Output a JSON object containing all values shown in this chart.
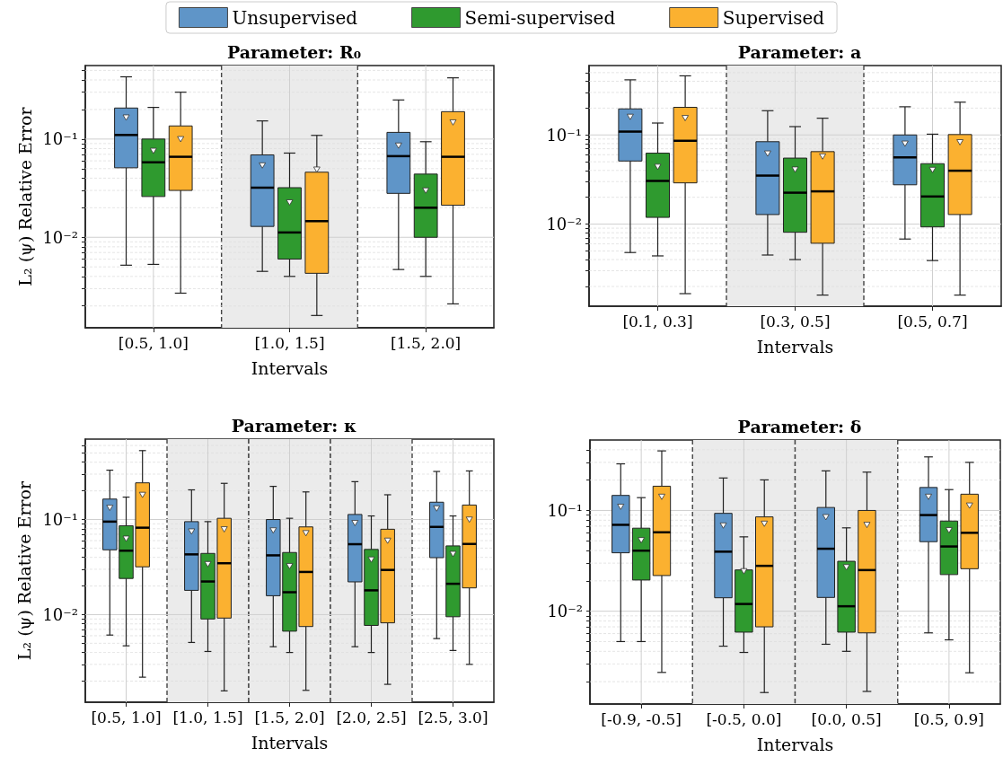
{
  "chart_data": [
    {
      "type": "box",
      "title": "Parameter: R₀",
      "xlabel": "Intervals",
      "ylabel": "L₂ (ψ) Relative Error",
      "categories": [
        "[0.5, 1.0]",
        "[1.0, 1.5]",
        "[1.5, 2.0]"
      ],
      "log": "y",
      "ylim": [
        0.0012,
        0.56
      ],
      "yticks": [
        {
          "value": 0.002,
          "label": null
        },
        {
          "value": 0.003,
          "label": null
        },
        {
          "value": 0.004,
          "label": null
        },
        {
          "value": 0.005,
          "label": null
        },
        {
          "value": 0.006,
          "label": null
        },
        {
          "value": 0.007,
          "label": null
        },
        {
          "value": 0.008,
          "label": null
        },
        {
          "value": 0.009,
          "label": null
        },
        {
          "value": 0.01,
          "label": "10⁻²"
        },
        {
          "value": 0.02,
          "label": null
        },
        {
          "value": 0.03,
          "label": null
        },
        {
          "value": 0.04,
          "label": null
        },
        {
          "value": 0.05,
          "label": null
        },
        {
          "value": 0.06,
          "label": null
        },
        {
          "value": 0.07,
          "label": null
        },
        {
          "value": 0.08,
          "label": null
        },
        {
          "value": 0.09,
          "label": null
        },
        {
          "value": 0.1,
          "label": "10⁻¹"
        },
        {
          "value": 0.2,
          "label": null
        },
        {
          "value": 0.3,
          "label": null
        },
        {
          "value": 0.4,
          "label": null
        },
        {
          "value": 0.5,
          "label": null
        }
      ],
      "grid": true,
      "legend": "top",
      "marker": "triangle",
      "bands": [
        {
          "axis": "x",
          "from": "[1.0, 1.5]",
          "to": "[1.0, 1.5]",
          "color": "#ebebeb"
        }
      ],
      "series": [
        {
          "name": "Unsupervised",
          "color": "#5f95c8",
          "boxes": [
            {
              "low": 0.0052,
              "q1": 0.051,
              "median": 0.11,
              "q3": 0.207,
              "high": 0.43,
              "mean": 0.166
            },
            {
              "low": 0.0045,
              "q1": 0.0129,
              "median": 0.032,
              "q3": 0.069,
              "high": 0.153,
              "mean": 0.054
            },
            {
              "low": 0.0047,
              "q1": 0.028,
              "median": 0.067,
              "q3": 0.117,
              "high": 0.25,
              "mean": 0.086
            }
          ]
        },
        {
          "name": "Semi-supervised",
          "color": "#2f9a2f",
          "boxes": [
            {
              "low": 0.0053,
              "q1": 0.026,
              "median": 0.058,
              "q3": 0.1,
              "high": 0.21,
              "mean": 0.076
            },
            {
              "low": 0.004,
              "q1": 0.006,
              "median": 0.0112,
              "q3": 0.032,
              "high": 0.072,
              "mean": 0.0227
            },
            {
              "low": 0.004,
              "q1": 0.01,
              "median": 0.02,
              "q3": 0.044,
              "high": 0.094,
              "mean": 0.03
            }
          ]
        },
        {
          "name": "Supervised",
          "color": "#fbb130",
          "boxes": [
            {
              "low": 0.0027,
              "q1": 0.03,
              "median": 0.066,
              "q3": 0.136,
              "high": 0.3,
              "mean": 0.1
            },
            {
              "low": 0.0016,
              "q1": 0.0043,
              "median": 0.0146,
              "q3": 0.046,
              "high": 0.109,
              "mean": 0.049
            },
            {
              "low": 0.0021,
              "q1": 0.0212,
              "median": 0.066,
              "q3": 0.19,
              "high": 0.42,
              "mean": 0.148
            }
          ]
        }
      ]
    },
    {
      "type": "box",
      "title": "Parameter: a",
      "xlabel": "Intervals",
      "categories": [
        "[0.1, 0.3]",
        "[0.3, 0.5]",
        "[0.5, 0.7]"
      ],
      "log": "y",
      "ylim": [
        0.0012,
        0.6
      ],
      "yticks": [
        {
          "value": 0.002,
          "label": null
        },
        {
          "value": 0.003,
          "label": null
        },
        {
          "value": 0.004,
          "label": null
        },
        {
          "value": 0.005,
          "label": null
        },
        {
          "value": 0.006,
          "label": null
        },
        {
          "value": 0.007,
          "label": null
        },
        {
          "value": 0.008,
          "label": null
        },
        {
          "value": 0.009,
          "label": null
        },
        {
          "value": 0.01,
          "label": "10⁻²"
        },
        {
          "value": 0.02,
          "label": null
        },
        {
          "value": 0.03,
          "label": null
        },
        {
          "value": 0.04,
          "label": null
        },
        {
          "value": 0.05,
          "label": null
        },
        {
          "value": 0.06,
          "label": null
        },
        {
          "value": 0.07,
          "label": null
        },
        {
          "value": 0.08,
          "label": null
        },
        {
          "value": 0.09,
          "label": null
        },
        {
          "value": 0.1,
          "label": "10⁻¹"
        },
        {
          "value": 0.2,
          "label": null
        },
        {
          "value": 0.3,
          "label": null
        },
        {
          "value": 0.4,
          "label": null
        },
        {
          "value": 0.5,
          "label": null
        }
      ],
      "grid": true,
      "marker": "triangle",
      "bands": [
        {
          "axis": "x",
          "from": "[0.3, 0.5]",
          "to": "[0.3, 0.5]",
          "color": "#ebebeb"
        }
      ],
      "series": [
        {
          "color": "#5f95c8",
          "boxes": [
            {
              "low": 0.0048,
              "q1": 0.051,
              "median": 0.109,
              "q3": 0.196,
              "high": 0.415,
              "mean": 0.16
            },
            {
              "low": 0.0045,
              "q1": 0.0128,
              "median": 0.035,
              "q3": 0.084,
              "high": 0.187,
              "mean": 0.062
            },
            {
              "low": 0.0068,
              "q1": 0.0276,
              "median": 0.056,
              "q3": 0.1,
              "high": 0.207,
              "mean": 0.08
            }
          ]
        },
        {
          "color": "#2f9a2f",
          "boxes": [
            {
              "low": 0.0044,
              "q1": 0.0119,
              "median": 0.0305,
              "q3": 0.0625,
              "high": 0.136,
              "mean": 0.044
            },
            {
              "low": 0.004,
              "q1": 0.0081,
              "median": 0.0225,
              "q3": 0.055,
              "high": 0.124,
              "mean": 0.041
            },
            {
              "low": 0.0039,
              "q1": 0.0093,
              "median": 0.0204,
              "q3": 0.0476,
              "high": 0.102,
              "mean": 0.0406
            }
          ]
        },
        {
          "color": "#fbb130",
          "boxes": [
            {
              "low": 0.00166,
              "q1": 0.029,
              "median": 0.086,
              "q3": 0.204,
              "high": 0.46,
              "mean": 0.155
            },
            {
              "low": 0.0016,
              "q1": 0.0061,
              "median": 0.0233,
              "q3": 0.065,
              "high": 0.154,
              "mean": 0.0575
            },
            {
              "low": 0.0016,
              "q1": 0.0128,
              "median": 0.0397,
              "q3": 0.101,
              "high": 0.233,
              "mean": 0.083
            }
          ]
        }
      ]
    },
    {
      "type": "box",
      "title": "Parameter: κ",
      "xlabel": "Intervals",
      "ylabel": "L₂ (ψ) Relative Error",
      "categories": [
        "[0.5, 1.0]",
        "[1.0, 1.5]",
        "[1.5, 2.0]",
        "[2.0, 2.5]",
        "[2.5, 3.0]"
      ],
      "log": "y",
      "ylim": [
        0.0012,
        0.7
      ],
      "yticks": [
        {
          "value": 0.002,
          "label": null
        },
        {
          "value": 0.003,
          "label": null
        },
        {
          "value": 0.004,
          "label": null
        },
        {
          "value": 0.005,
          "label": null
        },
        {
          "value": 0.006,
          "label": null
        },
        {
          "value": 0.007,
          "label": null
        },
        {
          "value": 0.008,
          "label": null
        },
        {
          "value": 0.009,
          "label": null
        },
        {
          "value": 0.01,
          "label": "10⁻²"
        },
        {
          "value": 0.02,
          "label": null
        },
        {
          "value": 0.03,
          "label": null
        },
        {
          "value": 0.04,
          "label": null
        },
        {
          "value": 0.05,
          "label": null
        },
        {
          "value": 0.06,
          "label": null
        },
        {
          "value": 0.07,
          "label": null
        },
        {
          "value": 0.08,
          "label": null
        },
        {
          "value": 0.09,
          "label": null
        },
        {
          "value": 0.1,
          "label": "10⁻¹"
        },
        {
          "value": 0.2,
          "label": null
        },
        {
          "value": 0.3,
          "label": null
        },
        {
          "value": 0.4,
          "label": null
        },
        {
          "value": 0.5,
          "label": null
        },
        {
          "value": 0.6,
          "label": null
        }
      ],
      "grid": true,
      "marker": "triangle",
      "bands": [
        {
          "axis": "x",
          "from": "[1.0, 1.5]",
          "to": "[1.0, 1.5]",
          "color": "#ebebeb"
        },
        {
          "axis": "x",
          "from": "[1.5, 2.0]",
          "to": "[1.5, 2.0]",
          "color": "#ebebeb"
        },
        {
          "axis": "x",
          "from": "[2.0, 2.5]",
          "to": "[2.0, 2.5]",
          "color": "#ebebeb"
        }
      ],
      "series": [
        {
          "color": "#5f95c8",
          "boxes": [
            {
              "low": 0.0061,
              "q1": 0.048,
              "median": 0.095,
              "q3": 0.164,
              "high": 0.33,
              "mean": 0.133
            },
            {
              "low": 0.0051,
              "q1": 0.018,
              "median": 0.043,
              "q3": 0.095,
              "high": 0.205,
              "mean": 0.075
            },
            {
              "low": 0.0046,
              "q1": 0.0158,
              "median": 0.042,
              "q3": 0.1,
              "high": 0.223,
              "mean": 0.077
            },
            {
              "low": 0.0046,
              "q1": 0.0221,
              "median": 0.055,
              "q3": 0.113,
              "high": 0.25,
              "mean": 0.092
            },
            {
              "low": 0.0056,
              "q1": 0.0397,
              "median": 0.0836,
              "q3": 0.152,
              "high": 0.32,
              "mean": 0.131
            }
          ]
        },
        {
          "color": "#2f9a2f",
          "boxes": [
            {
              "low": 0.0047,
              "q1": 0.024,
              "median": 0.047,
              "q3": 0.086,
              "high": 0.172,
              "mean": 0.063
            },
            {
              "low": 0.0041,
              "q1": 0.009,
              "median": 0.0223,
              "q3": 0.044,
              "high": 0.095,
              "mean": 0.034
            },
            {
              "low": 0.004,
              "q1": 0.0067,
              "median": 0.0172,
              "q3": 0.045,
              "high": 0.103,
              "mean": 0.0324
            },
            {
              "low": 0.004,
              "q1": 0.0077,
              "median": 0.018,
              "q3": 0.0485,
              "high": 0.109,
              "mean": 0.038
            },
            {
              "low": 0.0042,
              "q1": 0.0095,
              "median": 0.0211,
              "q3": 0.0528,
              "high": 0.109,
              "mean": 0.0435
            }
          ]
        },
        {
          "color": "#fbb130",
          "boxes": [
            {
              "low": 0.0022,
              "q1": 0.0318,
              "median": 0.082,
              "q3": 0.243,
              "high": 0.53,
              "mean": 0.182
            },
            {
              "low": 0.00158,
              "q1": 0.0092,
              "median": 0.0347,
              "q3": 0.103,
              "high": 0.24,
              "mean": 0.079
            },
            {
              "low": 0.0016,
              "q1": 0.0075,
              "median": 0.0281,
              "q3": 0.0836,
              "high": 0.195,
              "mean": 0.072
            },
            {
              "low": 0.00185,
              "q1": 0.0082,
              "median": 0.0295,
              "q3": 0.079,
              "high": 0.182,
              "mean": 0.06
            },
            {
              "low": 0.003,
              "q1": 0.0191,
              "median": 0.0553,
              "q3": 0.142,
              "high": 0.324,
              "mean": 0.1
            }
          ]
        }
      ]
    },
    {
      "type": "box",
      "title": "Parameter: δ",
      "xlabel": "Intervals",
      "categories": [
        "[-0.9, -0.5]",
        "[-0.5, 0.0]",
        "[0.0, 0.5]",
        "[0.5, 0.9]"
      ],
      "log": "y",
      "ylim": [
        0.0012,
        0.5
      ],
      "yticks": [
        {
          "value": 0.002,
          "label": null
        },
        {
          "value": 0.003,
          "label": null
        },
        {
          "value": 0.004,
          "label": null
        },
        {
          "value": 0.005,
          "label": null
        },
        {
          "value": 0.006,
          "label": null
        },
        {
          "value": 0.007,
          "label": null
        },
        {
          "value": 0.008,
          "label": null
        },
        {
          "value": 0.009,
          "label": null
        },
        {
          "value": 0.01,
          "label": "10⁻²"
        },
        {
          "value": 0.02,
          "label": null
        },
        {
          "value": 0.03,
          "label": null
        },
        {
          "value": 0.04,
          "label": null
        },
        {
          "value": 0.05,
          "label": null
        },
        {
          "value": 0.06,
          "label": null
        },
        {
          "value": 0.07,
          "label": null
        },
        {
          "value": 0.08,
          "label": null
        },
        {
          "value": 0.09,
          "label": null
        },
        {
          "value": 0.1,
          "label": "10⁻¹"
        },
        {
          "value": 0.2,
          "label": null
        },
        {
          "value": 0.3,
          "label": null
        },
        {
          "value": 0.4,
          "label": null
        }
      ],
      "grid": true,
      "marker": "triangle",
      "bands": [
        {
          "axis": "x",
          "from": "[-0.5, 0.0]",
          "to": "[-0.5, 0.0]",
          "color": "#ebebeb"
        },
        {
          "axis": "x",
          "from": "[0.0, 0.5]",
          "to": "[0.0, 0.5]",
          "color": "#ebebeb"
        }
      ],
      "series": [
        {
          "color": "#5f95c8",
          "boxes": [
            {
              "low": 0.005,
              "q1": 0.038,
              "median": 0.072,
              "q3": 0.141,
              "high": 0.29,
              "mean": 0.109
            },
            {
              "low": 0.0045,
              "q1": 0.0136,
              "median": 0.039,
              "q3": 0.0936,
              "high": 0.21,
              "mean": 0.071
            },
            {
              "low": 0.0047,
              "q1": 0.0137,
              "median": 0.0417,
              "q3": 0.107,
              "high": 0.247,
              "mean": 0.086
            },
            {
              "low": 0.0061,
              "q1": 0.049,
              "median": 0.09,
              "q3": 0.169,
              "high": 0.34,
              "mean": 0.137
            }
          ]
        },
        {
          "color": "#2f9a2f",
          "boxes": [
            {
              "low": 0.005,
              "q1": 0.0204,
              "median": 0.0399,
              "q3": 0.0667,
              "high": 0.134,
              "mean": 0.0508
            },
            {
              "low": 0.0039,
              "q1": 0.0062,
              "median": 0.0118,
              "q3": 0.0257,
              "high": 0.0547,
              "mean": 0.025
            },
            {
              "low": 0.004,
              "q1": 0.0062,
              "median": 0.0112,
              "q3": 0.0313,
              "high": 0.0672,
              "mean": 0.0274
            },
            {
              "low": 0.0052,
              "q1": 0.0231,
              "median": 0.0439,
              "q3": 0.0785,
              "high": 0.161,
              "mean": 0.0638
            }
          ]
        },
        {
          "color": "#fbb130",
          "boxes": [
            {
              "low": 0.00247,
              "q1": 0.0226,
              "median": 0.0607,
              "q3": 0.174,
              "high": 0.39,
              "mean": 0.137
            },
            {
              "low": 0.00156,
              "q1": 0.007,
              "median": 0.0282,
              "q3": 0.0863,
              "high": 0.201,
              "mean": 0.074
            },
            {
              "low": 0.0016,
              "q1": 0.0061,
              "median": 0.0256,
              "q3": 0.1,
              "high": 0.24,
              "mean": 0.072
            },
            {
              "low": 0.00245,
              "q1": 0.0264,
              "median": 0.06,
              "q3": 0.145,
              "high": 0.3,
              "mean": 0.112
            }
          ]
        }
      ]
    }
  ]
}
